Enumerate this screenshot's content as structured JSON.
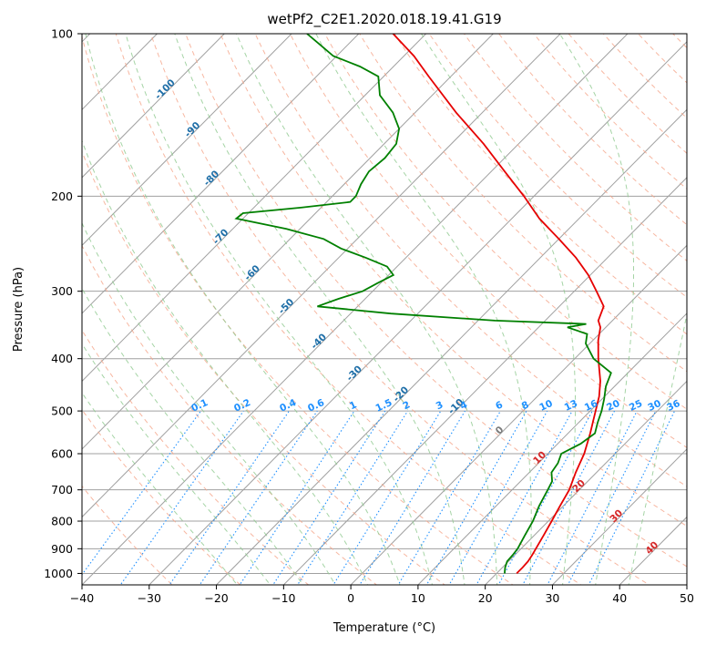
{
  "chart_data": {
    "type": "line",
    "chart_kind": "skew-T log-P diagram",
    "title": "wetPf2_C2E1.2020.018.19.41.G19",
    "xlabel": "Temperature (°C)",
    "ylabel": "Pressure (hPa)",
    "xlim": [
      -40,
      50
    ],
    "ylim": [
      1050,
      100
    ],
    "y_scale": "log",
    "grid": true,
    "x_ticks": [
      -40,
      -30,
      -20,
      -10,
      0,
      10,
      20,
      30,
      40,
      50
    ],
    "y_ticks": [
      100,
      200,
      300,
      400,
      500,
      600,
      700,
      800,
      900,
      1000
    ],
    "colors": {
      "temperature": "#e60000",
      "dewpoint": "#008000",
      "isotherm_grid": "#a0a0a0",
      "dry_adiabat": "#f5a58a",
      "moist_adiabat": "#8fc98f",
      "mixing_ratio": "#1e90ff",
      "isotherm_label": "#1f6fa8",
      "moist_label": "#d62728"
    },
    "series": [
      {
        "name": "",
        "variable": "temperature",
        "pressure": [
          1000,
          975,
          950,
          925,
          900,
          850,
          800,
          750,
          700,
          650,
          600,
          550,
          500,
          470,
          440,
          400,
          370,
          350,
          340,
          320,
          300,
          280,
          260,
          240,
          220,
          200,
          180,
          160,
          140,
          120,
          110,
          100
        ],
        "values": [
          23.0,
          23.0,
          22.9,
          22.6,
          22.2,
          21.4,
          20.5,
          19.5,
          18.5,
          16.9,
          15.4,
          13.3,
          10.8,
          9.2,
          7.1,
          3.5,
          0.8,
          -0.8,
          -2.1,
          -3.4,
          -6.7,
          -10.3,
          -14.7,
          -20.0,
          -25.9,
          -31.5,
          -38.0,
          -45.2,
          -53.9,
          -63.3,
          -68.5,
          -74.9
        ]
      },
      {
        "name": "",
        "variable": "dewpoint",
        "pressure": [
          1000,
          975,
          950,
          925,
          900,
          850,
          800,
          750,
          700,
          675,
          650,
          625,
          600,
          575,
          550,
          525,
          500,
          475,
          450,
          425,
          400,
          375,
          360,
          350,
          345,
          340,
          330,
          320,
          310,
          300,
          290,
          280,
          270,
          260,
          250,
          240,
          230,
          220,
          215,
          210,
          205,
          200,
          190,
          180,
          170,
          160,
          150,
          140,
          130,
          120,
          115,
          110,
          105,
          100
        ],
        "values": [
          21.2,
          20.4,
          19.8,
          19.7,
          19.5,
          18.6,
          17.7,
          16.4,
          15.3,
          14.7,
          13.3,
          12.9,
          12.0,
          13.4,
          14.0,
          12.8,
          11.7,
          10.3,
          8.7,
          7.5,
          2.8,
          -0.6,
          -1.8,
          -5.7,
          -3.4,
          -17.5,
          -34.0,
          -46.0,
          -44.0,
          -41.5,
          -40.5,
          -39.3,
          -41.5,
          -46.0,
          -51.0,
          -55.0,
          -62.0,
          -71.0,
          -70.8,
          -63.0,
          -56.5,
          -56.5,
          -57.5,
          -58.2,
          -57.8,
          -58.2,
          -60.0,
          -63.3,
          -67.8,
          -70.8,
          -75.0,
          -80.5,
          -84.0,
          -87.7
        ]
      }
    ],
    "isotherm_labels": [
      "-100",
      "-90",
      "-80",
      "-70",
      "-60",
      "-50",
      "-40",
      "-30",
      "-20",
      "-10",
      "0",
      "10",
      "20",
      "30",
      "40"
    ],
    "mixing_ratio_labels": [
      "0.1",
      "0.2",
      "0.4",
      "0.6",
      "1",
      "1.5",
      "2",
      "3",
      "4",
      "6",
      "8",
      "10",
      "13",
      "16",
      "20",
      "25",
      "30",
      "36"
    ]
  }
}
